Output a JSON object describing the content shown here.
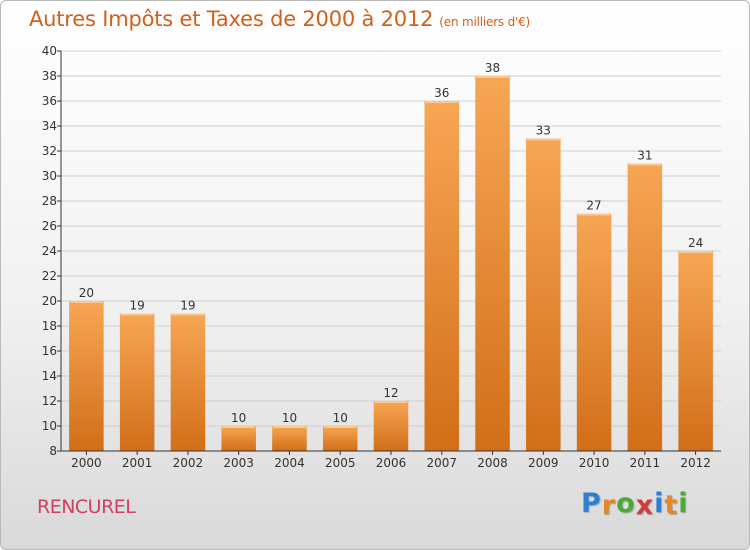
{
  "title": "Autres Impôts et Taxes de 2000 à 2012",
  "title_unit": "(en milliers d'€)",
  "town": "RENCUREL",
  "logo": {
    "letters": [
      "P",
      "r",
      "o",
      "x",
      "i",
      "t",
      "i"
    ],
    "colors": [
      "#2d7fd2",
      "#e2872a",
      "#4ca83a",
      "#d23c3c",
      "#2d7fd2",
      "#e2872a",
      "#4ca83a"
    ]
  },
  "colors": {
    "bar_top": "#f7a654",
    "bar_bottom": "#d26e18",
    "grid": "#cfcfcf",
    "axis": "#333333",
    "title": "#d2601a",
    "town": "#d24060"
  },
  "chart_data": {
    "type": "bar",
    "title": "Autres Impôts et Taxes de 2000 à 2012",
    "ylabel": "",
    "xlabel": "",
    "categories": [
      "2000",
      "2001",
      "2002",
      "2003",
      "2004",
      "2005",
      "2006",
      "2007",
      "2008",
      "2009",
      "2010",
      "2011",
      "2012"
    ],
    "values": [
      20,
      19,
      19,
      10,
      10,
      10,
      12,
      36,
      38,
      33,
      27,
      31,
      24
    ],
    "ylim": [
      8,
      40
    ],
    "yticks": [
      8,
      10,
      12,
      14,
      16,
      18,
      20,
      22,
      24,
      26,
      28,
      30,
      32,
      34,
      36,
      38,
      40
    ],
    "grid": true,
    "data_labels": true
  }
}
